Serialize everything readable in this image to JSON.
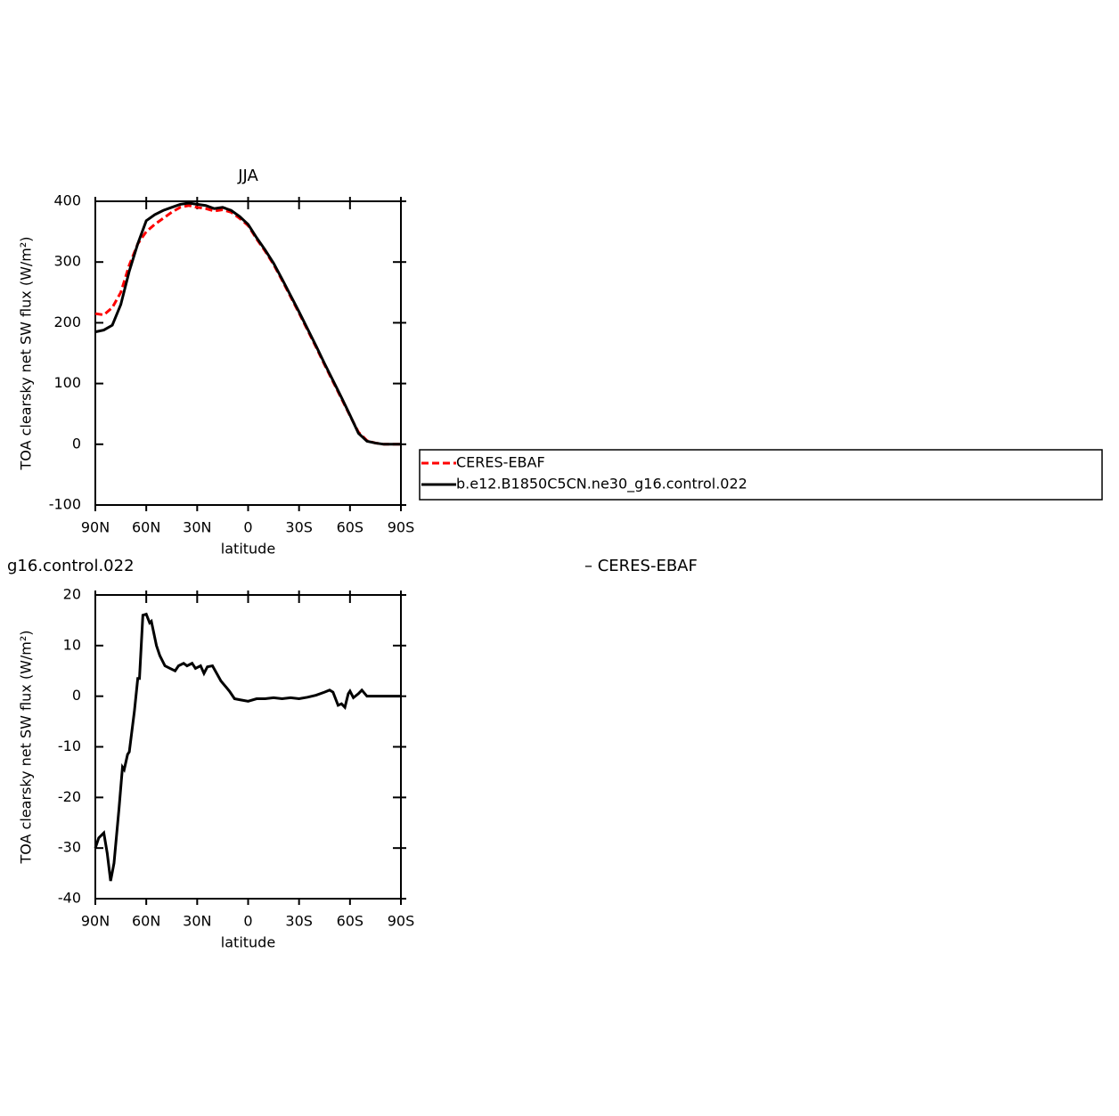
{
  "chart_data": [
    {
      "type": "line",
      "title": "JJA",
      "xlabel": "latitude",
      "ylabel": "TOA clearsky net SW flux (W/m²)",
      "x": [
        90,
        85,
        80,
        75,
        70,
        65,
        60,
        55,
        50,
        45,
        40,
        35,
        30,
        25,
        20,
        15,
        10,
        5,
        0,
        -5,
        -10,
        -15,
        -20,
        -25,
        -30,
        -35,
        -40,
        -45,
        -50,
        -55,
        -60,
        -65,
        -70,
        -75,
        -80,
        -85,
        -90
      ],
      "series": [
        {
          "name": "CERES-EBAF",
          "color": "#ff0000",
          "dash": true,
          "values": [
            215,
            213,
            225,
            250,
            295,
            330,
            350,
            362,
            372,
            382,
            390,
            393,
            390,
            388,
            384,
            386,
            382,
            372,
            360,
            338,
            318,
            296,
            270,
            243,
            216,
            188,
            160,
            131,
            103,
            75,
            47,
            20,
            6,
            2,
            0,
            0,
            0
          ]
        },
        {
          "name": "b.e12.B1850C5CN.ne30_g16.control.022",
          "color": "#000000",
          "dash": false,
          "values": [
            185,
            188,
            196,
            230,
            285,
            330,
            368,
            378,
            385,
            390,
            395,
            397,
            395,
            393,
            388,
            390,
            385,
            375,
            362,
            340,
            320,
            298,
            272,
            245,
            218,
            190,
            162,
            133,
            105,
            77,
            48,
            18,
            5,
            2,
            0,
            0,
            0
          ]
        }
      ],
      "xlim": [
        90,
        -90
      ],
      "xticks": [
        {
          "value": 90,
          "label": "90N"
        },
        {
          "value": 60,
          "label": "60N"
        },
        {
          "value": 30,
          "label": "30N"
        },
        0,
        {
          "value": -30,
          "label": "30S"
        },
        {
          "value": -60,
          "label": "60S"
        },
        {
          "value": -90,
          "label": "90S"
        }
      ],
      "ylim": [
        -100,
        400
      ],
      "yticks": [
        -100,
        0,
        100,
        200,
        300,
        400
      ],
      "legend": "right"
    },
    {
      "type": "line",
      "title": [
        "g16.control.022",
        "– CERES-EBAF"
      ],
      "xlabel": "latitude",
      "ylabel": "TOA clearsky net SW flux (W/m²)",
      "x": [
        90,
        88,
        85,
        83,
        81,
        79,
        76,
        74,
        73,
        71,
        70,
        67,
        65,
        64,
        62,
        60,
        58,
        57,
        54,
        52,
        49,
        46,
        43,
        41,
        38,
        36,
        33,
        31,
        28,
        26,
        24,
        21,
        16,
        11,
        8,
        5,
        0,
        -5,
        -10,
        -15,
        -20,
        -25,
        -30,
        -35,
        -40,
        -45,
        -48,
        -50,
        -53,
        -55,
        -57,
        -59,
        -60,
        -62,
        -65,
        -67,
        -70,
        -75,
        -80,
        -90
      ],
      "series": [
        {
          "color": "#000000",
          "dash": false,
          "values": [
            -30,
            -28,
            -27,
            -31,
            -36.5,
            -33,
            -22,
            -14,
            -14.5,
            -11.5,
            -11,
            -3,
            3.5,
            3.5,
            16,
            16.2,
            14.5,
            14.8,
            10,
            8,
            6,
            5.5,
            5,
            6,
            6.5,
            6,
            6.5,
            5.5,
            6,
            4.5,
            5.8,
            6,
            3,
            1,
            -0.5,
            -0.7,
            -1,
            -0.5,
            -0.5,
            -0.3,
            -0.5,
            -0.3,
            -0.5,
            -0.2,
            0.2,
            0.8,
            1.2,
            0.8,
            -1.8,
            -1.5,
            -2.2,
            0.5,
            1,
            -0.3,
            0.5,
            1.2,
            0,
            0,
            0,
            0
          ]
        }
      ],
      "xlim": [
        90,
        -90
      ],
      "xticks": [
        {
          "value": 90,
          "label": "90N"
        },
        {
          "value": 60,
          "label": "60N"
        },
        {
          "value": 30,
          "label": "30N"
        },
        0,
        {
          "value": -30,
          "label": "30S"
        },
        {
          "value": -60,
          "label": "60S"
        },
        {
          "value": -90,
          "label": "90S"
        }
      ],
      "ylim": [
        -40,
        20
      ],
      "yticks": [
        -40,
        -30,
        -20,
        -10,
        0,
        10,
        20
      ]
    }
  ]
}
